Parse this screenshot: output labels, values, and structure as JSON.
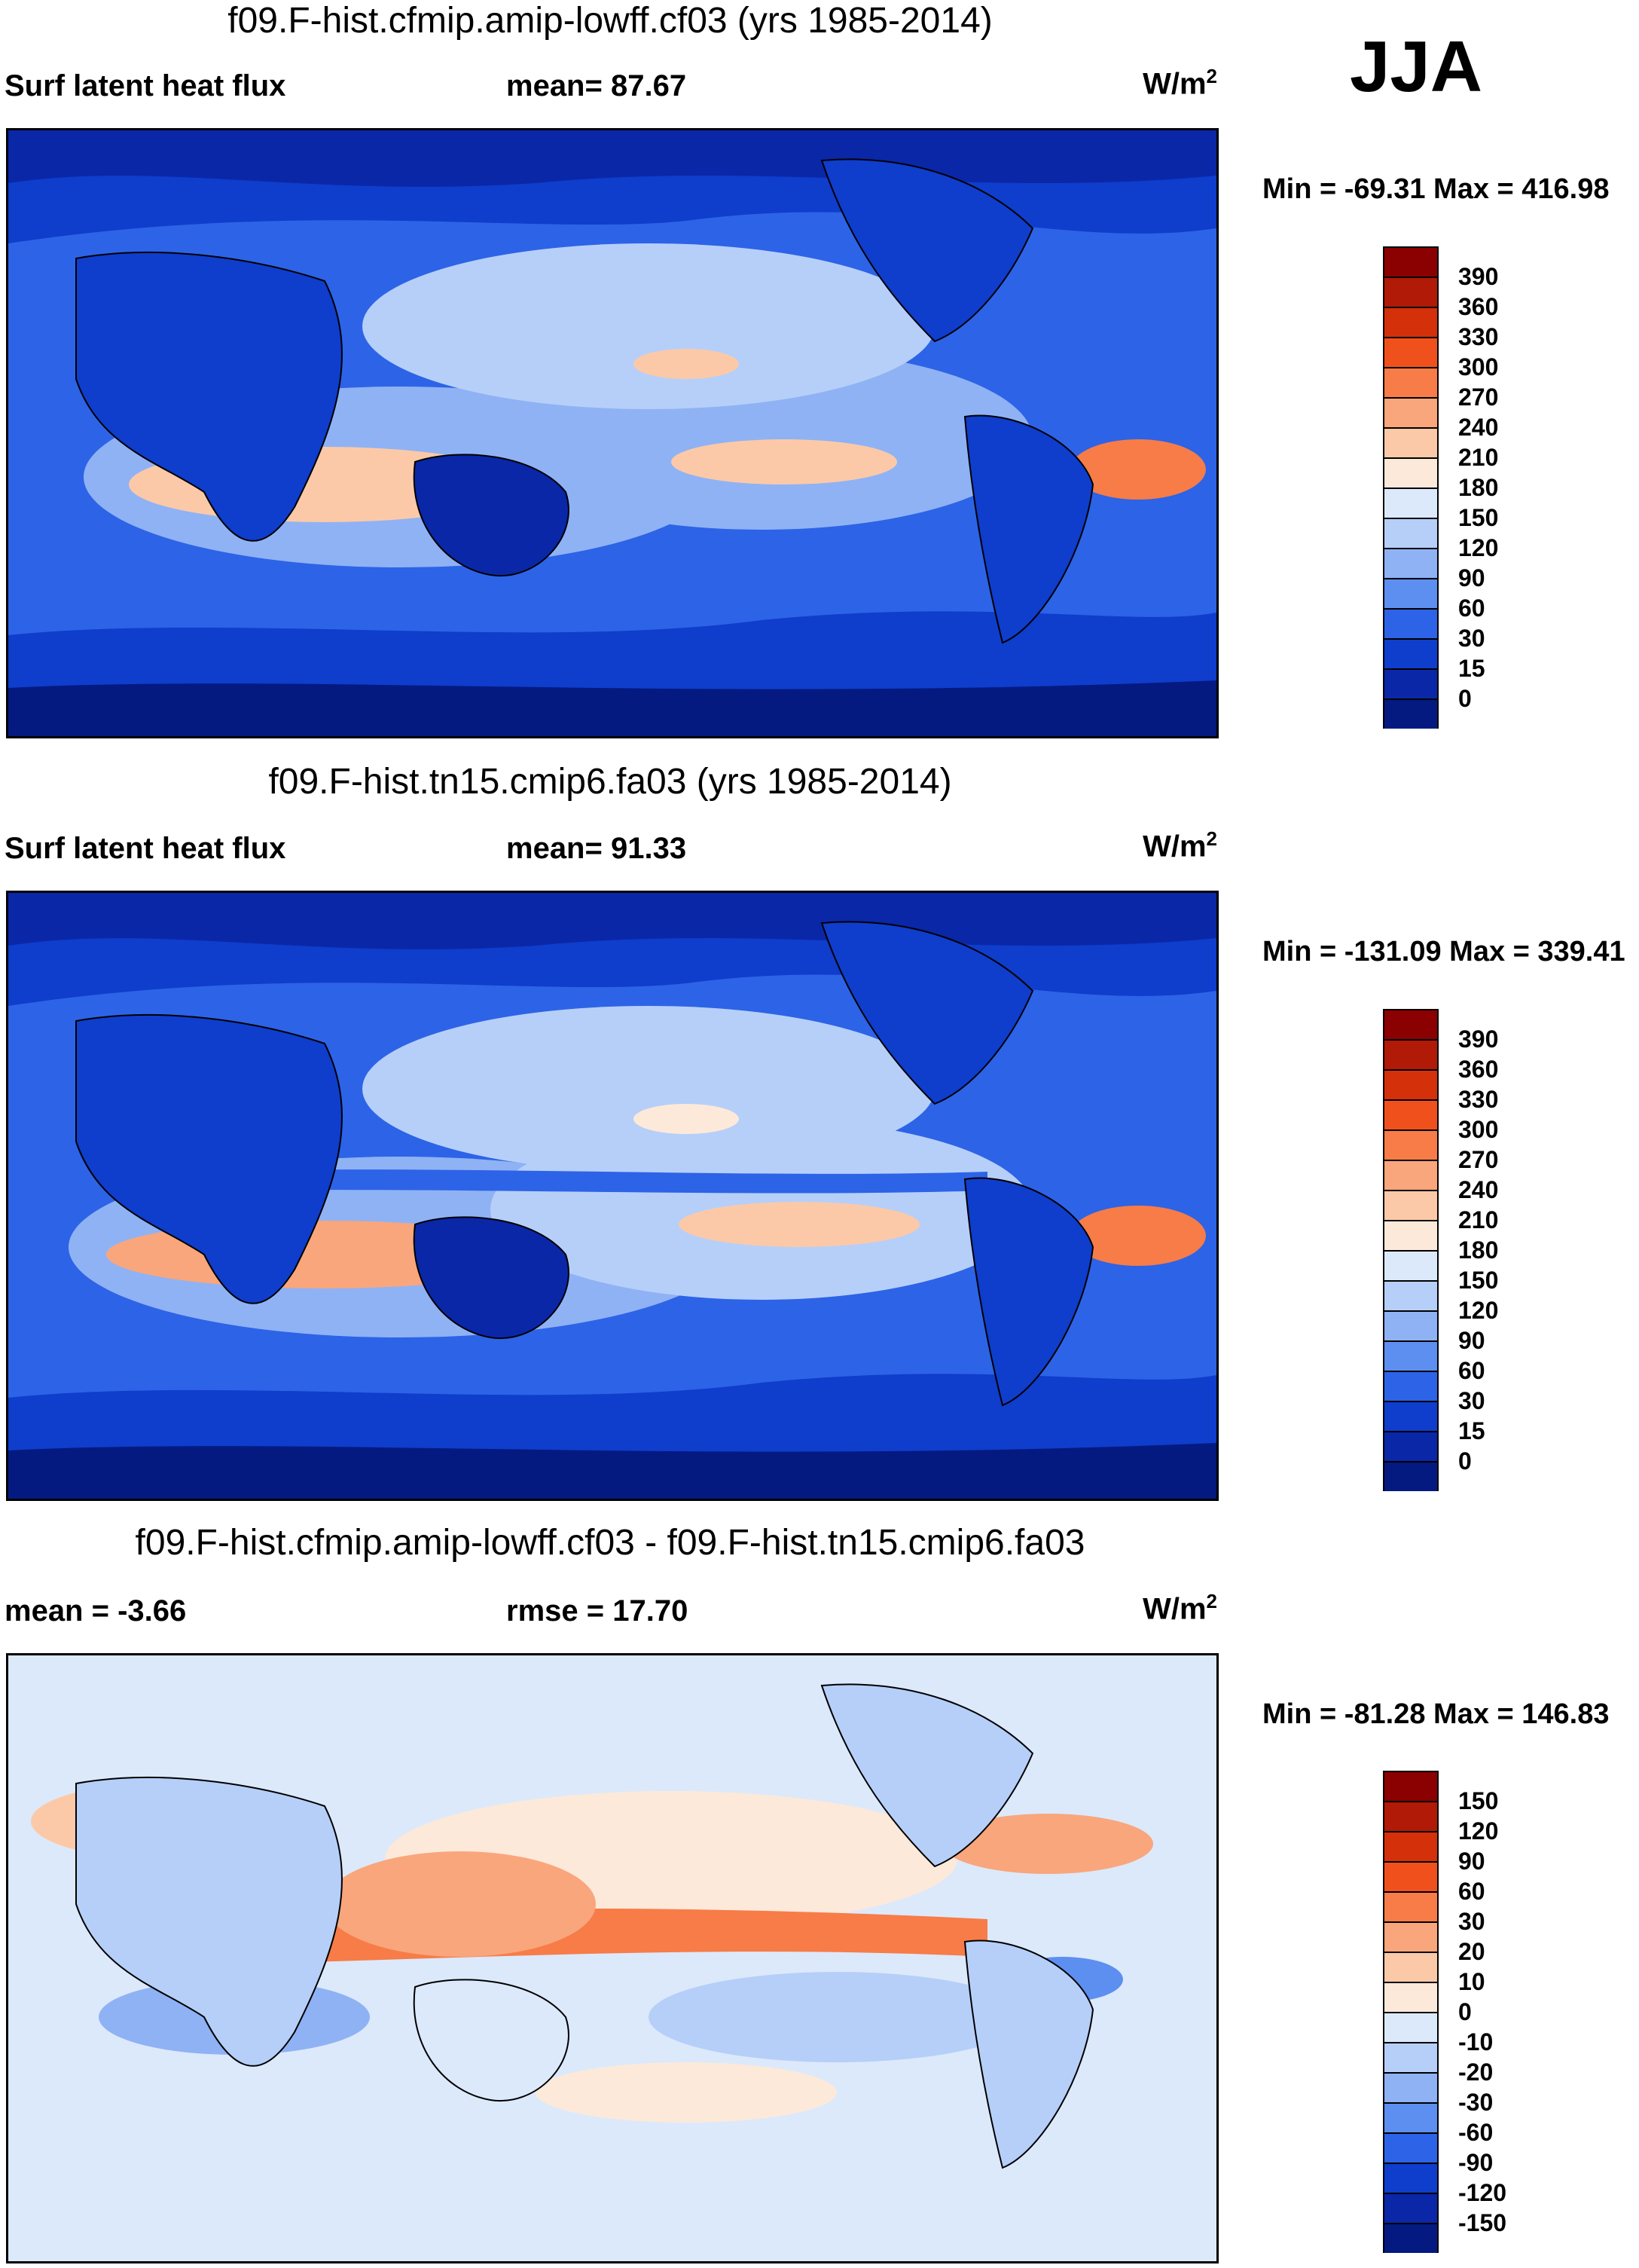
{
  "season": "JJA",
  "units_label": "W/m",
  "units_exp": "2",
  "panels": [
    {
      "title": "f09.F-hist.cfmip.amip-lowff.cf03 (yrs 1985-2014)",
      "variable_label": "Surf latent heat flux",
      "stat_label": "mean=  87.67",
      "minmax": "Min = -69.31 Max = 416.98"
    },
    {
      "title": "f09.F-hist.tn15.cmip6.fa03 (yrs 1985-2014)",
      "variable_label": "Surf latent heat flux",
      "stat_label": "mean=  91.33",
      "minmax": "Min = -131.09 Max = 339.41"
    },
    {
      "title": "f09.F-hist.cfmip.amip-lowff.cf03 - f09.F-hist.tn15.cmip6.fa03",
      "variable_label": "mean =  -3.66",
      "stat_label": "rmse =  17.70",
      "minmax": "Min = -81.28 Max = 146.83"
    }
  ],
  "chart_data": [
    {
      "type": "heatmap",
      "title": "f09.F-hist.cfmip.amip-lowff.cf03 (yrs 1985-2014)",
      "variable": "Surf latent heat flux",
      "units": "W/m2",
      "mean": 87.67,
      "min": -69.31,
      "max": 416.98,
      "colorbar": {
        "levels": [
          "390",
          "360",
          "330",
          "300",
          "270",
          "240",
          "210",
          "180",
          "150",
          "120",
          "90",
          "60",
          "30",
          "15",
          "0"
        ],
        "colors": [
          "#8b0000",
          "#b01a06",
          "#d4300a",
          "#f0511c",
          "#f77c48",
          "#f9a67c",
          "#fbc9a8",
          "#fde9da",
          "#dce9fb",
          "#b6cff9",
          "#8fb2f5",
          "#5d8ff0",
          "#2d63e6",
          "#0f3dcc",
          "#0a27a8",
          "#041a80"
        ]
      }
    },
    {
      "type": "heatmap",
      "title": "f09.F-hist.tn15.cmip6.fa03 (yrs 1985-2014)",
      "variable": "Surf latent heat flux",
      "units": "W/m2",
      "mean": 91.33,
      "min": -131.09,
      "max": 339.41,
      "colorbar": {
        "levels": [
          "390",
          "360",
          "330",
          "300",
          "270",
          "240",
          "210",
          "180",
          "150",
          "120",
          "90",
          "60",
          "30",
          "15",
          "0"
        ],
        "colors": [
          "#8b0000",
          "#b01a06",
          "#d4300a",
          "#f0511c",
          "#f77c48",
          "#f9a67c",
          "#fbc9a8",
          "#fde9da",
          "#dce9fb",
          "#b6cff9",
          "#8fb2f5",
          "#5d8ff0",
          "#2d63e6",
          "#0f3dcc",
          "#0a27a8",
          "#041a80"
        ]
      }
    },
    {
      "type": "heatmap",
      "title": "f09.F-hist.cfmip.amip-lowff.cf03 - f09.F-hist.tn15.cmip6.fa03",
      "units": "W/m2",
      "mean": -3.66,
      "rmse": 17.7,
      "min": -81.28,
      "max": 146.83,
      "colorbar": {
        "levels": [
          "150",
          "120",
          "90",
          "60",
          "30",
          "20",
          "10",
          "0",
          "-10",
          "-20",
          "-30",
          "-60",
          "-90",
          "-120",
          "-150"
        ],
        "colors": [
          "#8b0000",
          "#b01a06",
          "#d4300a",
          "#f0511c",
          "#f77c48",
          "#f9a67c",
          "#fbc9a8",
          "#fde9da",
          "#dce9fb",
          "#b6cff9",
          "#8fb2f5",
          "#5d8ff0",
          "#2d63e6",
          "#0f3dcc",
          "#0a27a8",
          "#041a80"
        ]
      }
    }
  ]
}
